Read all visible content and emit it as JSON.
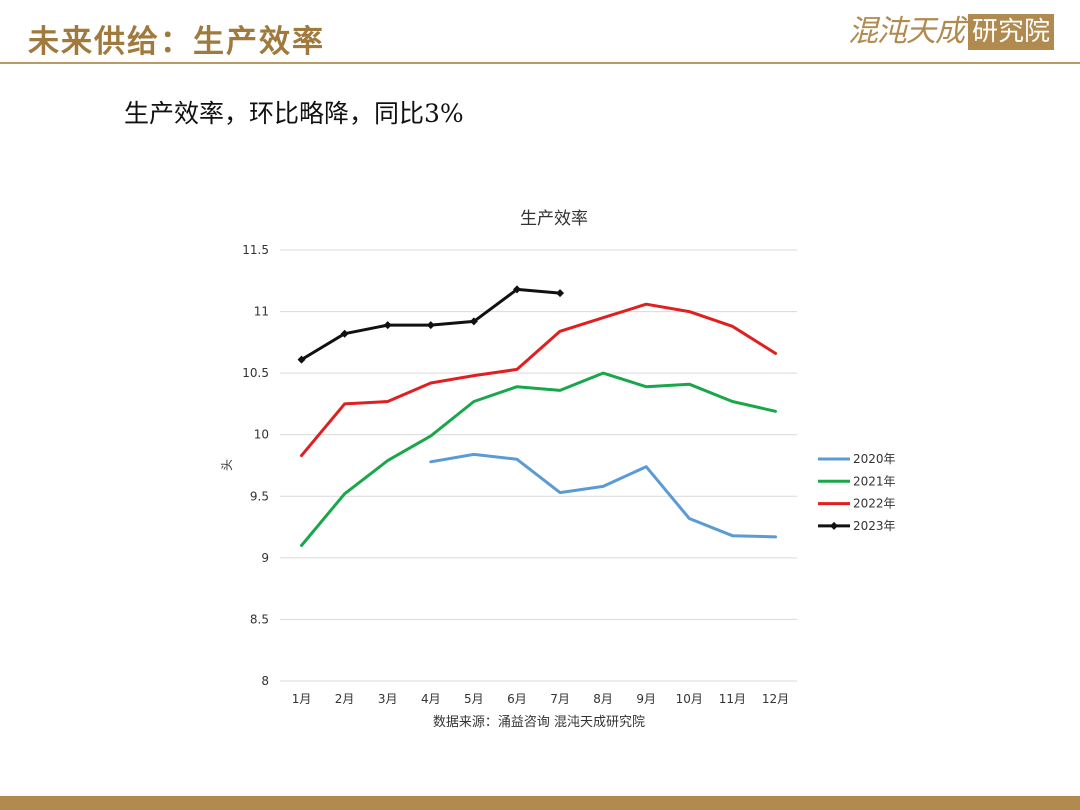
{
  "header": {
    "title": "未来供给：生产效率",
    "logo_script": "混沌天成",
    "logo_box": "研究院"
  },
  "subtitle": "生产效率，环比略降，同比3%",
  "source_note": "数据来源：涌益咨询 混沌天成研究院",
  "colors": {
    "accent": "#b08a4e",
    "series": [
      "#5b9bd5",
      "#1aa64a",
      "#e02020",
      "#111111"
    ]
  },
  "chart_data": {
    "type": "line",
    "title": "生产效率",
    "xlabel": "",
    "ylabel": "头",
    "categories": [
      "1月",
      "2月",
      "3月",
      "4月",
      "5月",
      "6月",
      "7月",
      "8月",
      "9月",
      "10月",
      "11月",
      "12月"
    ],
    "ylim": [
      8,
      11.5
    ],
    "yticks": [
      "8",
      "8.5",
      "9",
      "9.5",
      "10",
      "10.5",
      "11",
      "11.5"
    ],
    "ytick_values": [
      8,
      8.5,
      9,
      9.5,
      10,
      10.5,
      11,
      11.5
    ],
    "grid": true,
    "legend": "right",
    "series": [
      {
        "name": "2020年",
        "color": "#5b9bd5",
        "marker": false,
        "values": [
          null,
          null,
          null,
          9.78,
          9.84,
          9.8,
          9.53,
          9.58,
          9.74,
          9.32,
          9.18,
          9.17
        ]
      },
      {
        "name": "2021年",
        "color": "#1aa64a",
        "marker": false,
        "values": [
          9.1,
          9.52,
          9.79,
          9.99,
          10.27,
          10.39,
          10.36,
          10.5,
          10.39,
          10.41,
          10.27,
          10.19
        ]
      },
      {
        "name": "2022年",
        "color": "#e02020",
        "marker": false,
        "values": [
          9.83,
          10.25,
          10.27,
          10.42,
          10.48,
          10.53,
          10.84,
          10.95,
          11.06,
          11.0,
          10.88,
          10.66
        ]
      },
      {
        "name": "2023年",
        "color": "#111111",
        "marker": true,
        "values": [
          10.61,
          10.82,
          10.89,
          10.89,
          10.92,
          11.18,
          11.15,
          null,
          null,
          null,
          null,
          null
        ]
      }
    ]
  }
}
